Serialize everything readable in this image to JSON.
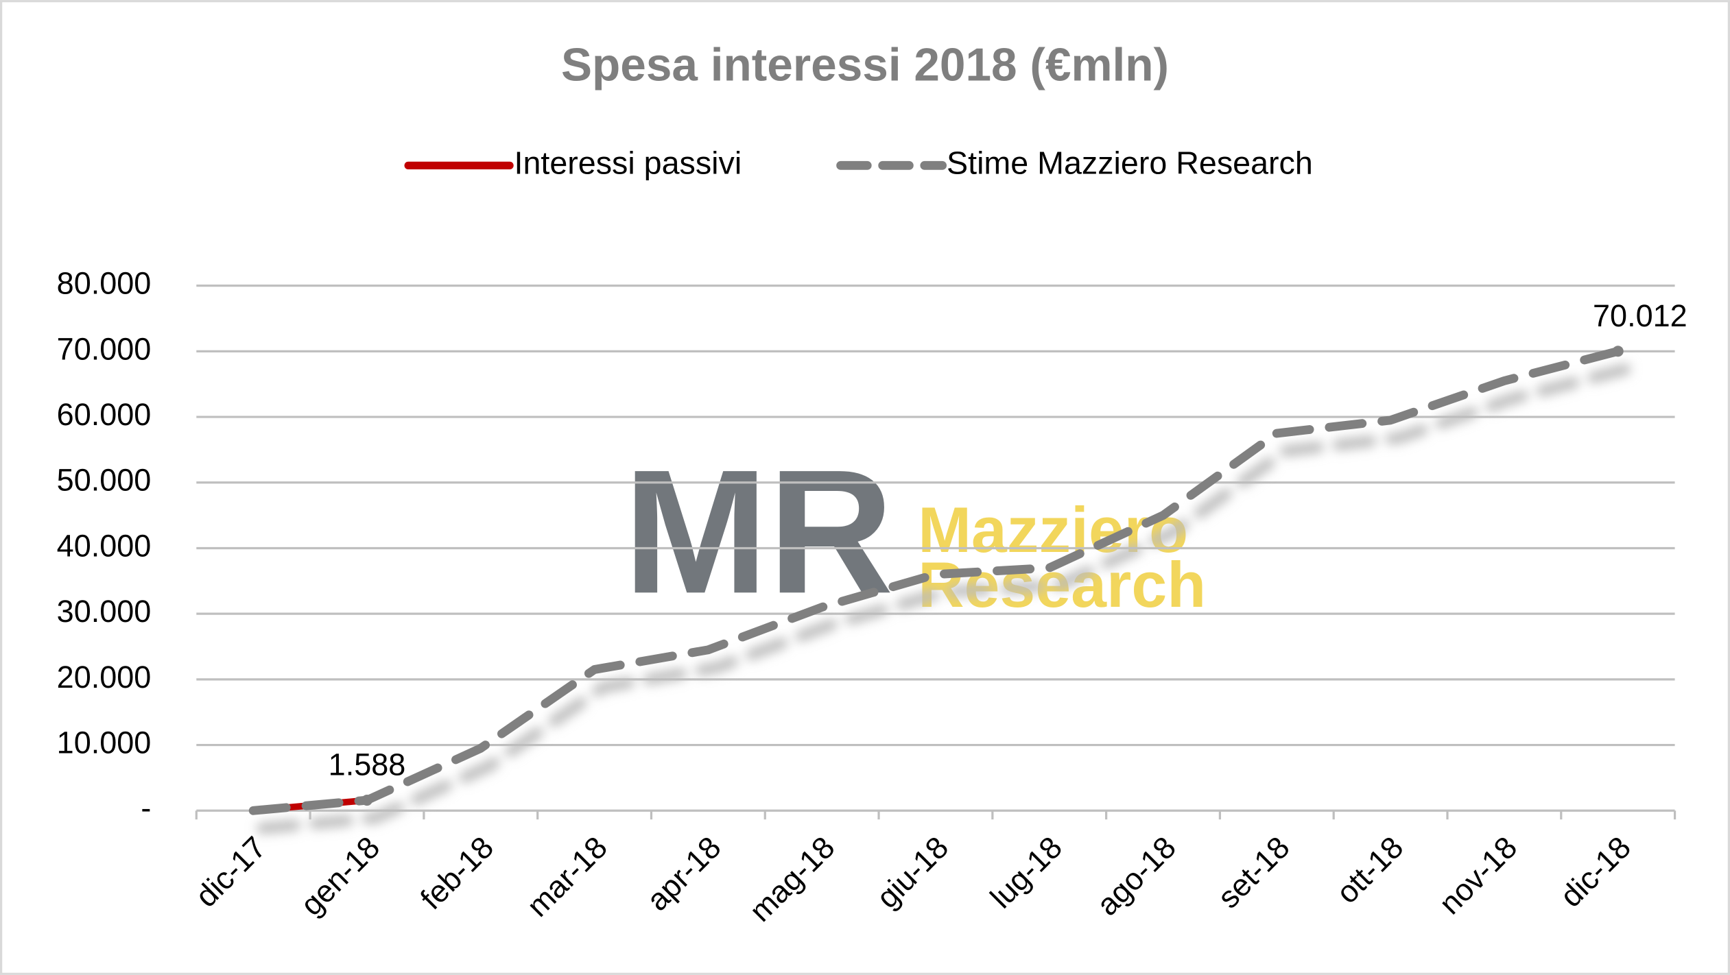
{
  "chart_data": {
    "type": "line",
    "title": "Spesa interessi 2018 (€mln)",
    "watermark": {
      "logo": "MR",
      "line1": "Mazziero",
      "line2": "Research"
    },
    "categories": [
      "dic-17",
      "gen-18",
      "feb-18",
      "mar-18",
      "apr-18",
      "mag-18",
      "giu-18",
      "lug-18",
      "ago-18",
      "set-18",
      "ott-18",
      "nov-18",
      "dic-18"
    ],
    "series": [
      {
        "name": "Interessi passivi",
        "color": "#c00000",
        "dashed": false,
        "values": [
          0,
          1588,
          null,
          null,
          null,
          null,
          null,
          null,
          null,
          null,
          null,
          null,
          null
        ]
      },
      {
        "name": "Stime Mazziero Research",
        "color": "#808080",
        "dashed": true,
        "values": [
          0,
          1588,
          9500,
          21500,
          24500,
          31000,
          36000,
          37000,
          45000,
          57500,
          59500,
          65500,
          70012
        ],
        "value_labels": [
          null,
          "1.588",
          null,
          null,
          null,
          null,
          null,
          null,
          null,
          null,
          null,
          null,
          "70.012"
        ]
      }
    ],
    "ylim": [
      0,
      80000
    ],
    "yticks": [
      {
        "value": 0,
        "label": "-"
      },
      {
        "value": 10000,
        "label": "10.000"
      },
      {
        "value": 20000,
        "label": "20.000"
      },
      {
        "value": 30000,
        "label": "30.000"
      },
      {
        "value": 40000,
        "label": "40.000"
      },
      {
        "value": 50000,
        "label": "50.000"
      },
      {
        "value": 60000,
        "label": "60.000"
      },
      {
        "value": 70000,
        "label": "70.000"
      },
      {
        "value": 80000,
        "label": "80.000"
      }
    ],
    "grid": true,
    "legend": "top"
  }
}
